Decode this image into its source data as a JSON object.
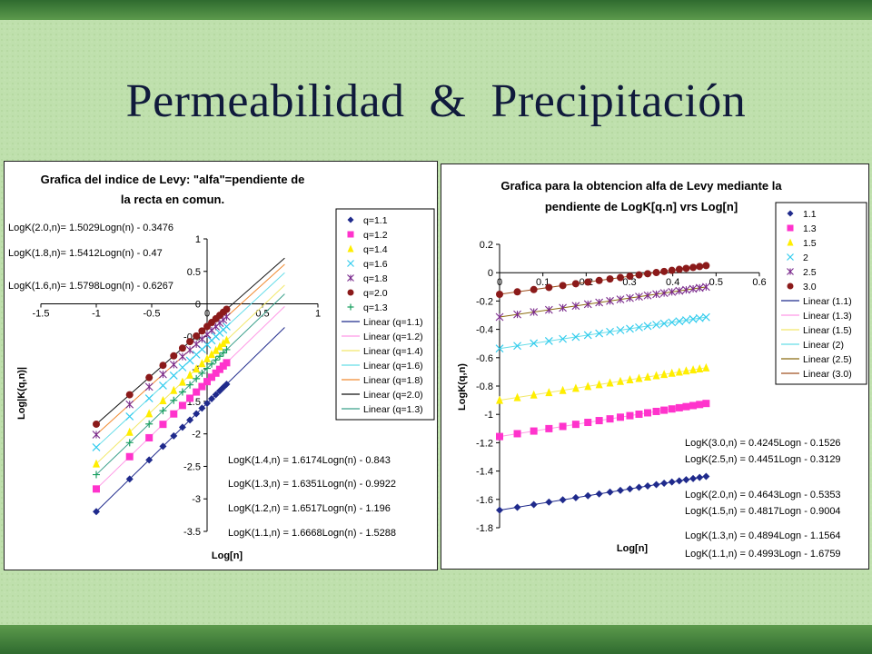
{
  "slide": {
    "title": "Permeabilidad  &  Precipitación",
    "colors": {
      "background": "#bfe0ad",
      "top_band": "#3a7a3a",
      "bottom_band": "#2f6b2f",
      "title": "#101a3c"
    }
  },
  "chart_data": [
    {
      "type": "scatter",
      "title": "Grafica del indice de Levy: \"alfa\"=pendiente de la recta en comun.",
      "title_lines": [
        "Grafica del indice de Levy: \"alfa\"=pendiente de",
        "la recta en comun."
      ],
      "xlabel": "Log[n]",
      "ylabel": "Log|K(q,n)|",
      "xlim": [
        -1.5,
        1
      ],
      "ylim": [
        -3.5,
        1
      ],
      "xticks": [
        "-1.5",
        "-1",
        "-0.5",
        "0",
        "0.5",
        "1"
      ],
      "yticks": [
        "1",
        "0.5",
        "0",
        "-0.5",
        "-1",
        "-1.5",
        "-2",
        "-2.5",
        "-3",
        "-3.5"
      ],
      "legend_position": "right",
      "x": [
        -1.0,
        -0.699,
        -0.523,
        -0.398,
        -0.301,
        -0.222,
        -0.155,
        -0.097,
        -0.046,
        0.0,
        0.041,
        0.079,
        0.114,
        0.146,
        0.176
      ],
      "fit_x_range": [
        -1.0,
        0.7
      ],
      "series": [
        {
          "name": "q=1.1",
          "slope": 1.6668,
          "intercept": -1.5288,
          "color": "#1f2a8c",
          "marker": "diamond",
          "fit_label": "Linear (q=1.1)",
          "fit_color": "#1f2a8c"
        },
        {
          "name": "q=1.2",
          "slope": 1.6517,
          "intercept": -1.196,
          "color": "#ff33cc",
          "marker": "square",
          "fit_label": "Linear (q=1.2)",
          "fit_color": "#ff99e6"
        },
        {
          "name": "q=1.4",
          "slope": 1.6174,
          "intercept": -0.843,
          "color": "#ffee00",
          "marker": "triangle",
          "fit_label": "Linear (q=1.4)",
          "fit_color": "#f2e86a"
        },
        {
          "name": "q=1.6",
          "slope": 1.5798,
          "intercept": -0.6267,
          "color": "#33ccee",
          "marker": "x",
          "fit_label": "Linear (q=1.6)",
          "fit_color": "#66dde8"
        },
        {
          "name": "q=1.8",
          "slope": 1.5412,
          "intercept": -0.47,
          "color": "#7a2a8c",
          "marker": "star",
          "fit_label": "Linear (q=1.8)",
          "fit_color": "#f08a30"
        },
        {
          "name": "q=2.0",
          "slope": 1.5029,
          "intercept": -0.3476,
          "color": "#8b1a1a",
          "marker": "circle",
          "fit_label": "Linear (q=2.0)",
          "fit_color": "#111111"
        },
        {
          "name": "q=1.3",
          "slope": 1.6351,
          "intercept": -0.9922,
          "color": "#1aa060",
          "marker": "plus",
          "fit_label": "Linear (q=1.3)",
          "fit_color": "#3aa08a"
        }
      ],
      "annotations": [
        "LogK(2.0,n)= 1.5029Logn(n) - 0.3476",
        "LogK(1.8,n)= 1.5412Logn(n) - 0.47",
        "LogK(1.6,n)= 1.5798Logn(n) - 0.6267",
        "LogK(1.4,n) = 1.6174Logn(n) - 0.843",
        "LogK(1.3,n) = 1.6351Logn(n) - 0.9922",
        "LogK(1.2,n) = 1.6517Logn(n) - 1.196",
        "LogK(1.1,n) = 1.6668Logn(n) - 1.5288"
      ]
    },
    {
      "type": "scatter",
      "title": "Grafica para la obtencion alfa de Levy mediante la pendiente de  LogK[q.n] vrs Log[n]",
      "title_lines": [
        "Grafica para la obtencion alfa de Levy mediante la",
        "pendiente de  LogK[q.n] vrs Log[n]"
      ],
      "xlabel": "Log[n]",
      "ylabel": "LogK(q,n)",
      "xlim": [
        0,
        0.6
      ],
      "ylim": [
        -1.8,
        0.2
      ],
      "xticks": [
        "0",
        "0.1",
        "0.2",
        "0.3",
        "0.4",
        "0.5",
        "0.6"
      ],
      "yticks": [
        "0.2",
        "0",
        "-0.2",
        "-0.4",
        "-0.6",
        "-0.8",
        "-1",
        "-1.2",
        "-1.4",
        "-1.6",
        "-1.8"
      ],
      "legend_position": "right",
      "x": [
        0.0,
        0.041,
        0.079,
        0.114,
        0.146,
        0.176,
        0.204,
        0.23,
        0.255,
        0.279,
        0.301,
        0.322,
        0.342,
        0.362,
        0.38,
        0.398,
        0.415,
        0.431,
        0.447,
        0.462,
        0.477
      ],
      "fit_x_range": [
        0.0,
        0.477
      ],
      "series": [
        {
          "name": "1.1",
          "slope": 0.4993,
          "intercept": -1.6759,
          "color": "#1f2a8c",
          "marker": "diamond",
          "fit_label": "Linear (1.1)",
          "fit_color": "#1f2a8c"
        },
        {
          "name": "1.3",
          "slope": 0.4894,
          "intercept": -1.1564,
          "color": "#ff33cc",
          "marker": "square",
          "fit_label": "Linear (1.3)",
          "fit_color": "#ff99e6"
        },
        {
          "name": "1.5",
          "slope": 0.4817,
          "intercept": -0.9004,
          "color": "#ffee00",
          "marker": "triangle",
          "fit_label": "Linear (1.5)",
          "fit_color": "#f2e86a"
        },
        {
          "name": "2",
          "slope": 0.4643,
          "intercept": -0.5353,
          "color": "#33ccee",
          "marker": "x",
          "fit_label": "Linear (2)",
          "fit_color": "#66dde8"
        },
        {
          "name": "2.5",
          "slope": 0.4451,
          "intercept": -0.3129,
          "color": "#7a2a8c",
          "marker": "star",
          "fit_label": "Linear (2.5)",
          "fit_color": "#8a6a10"
        },
        {
          "name": "3.0",
          "slope": 0.4245,
          "intercept": -0.1526,
          "color": "#8b1a1a",
          "marker": "circle",
          "fit_label": "Linear (3.0)",
          "fit_color": "#a05020"
        }
      ],
      "annotations": [
        "LogK(3.0,n) = 0.4245Logn - 0.1526",
        "LogK(2.5,n) = 0.4451Logn - 0.3129",
        "LogK(2.0,n) = 0.4643Logn - 0.5353",
        "LogK(1.5,n) = 0.4817Logn - 0.9004",
        "LogK(1.3,n) = 0.4894Logn - 1.1564",
        "LogK(1.1,n) = 0.4993Logn - 1.6759"
      ]
    }
  ]
}
